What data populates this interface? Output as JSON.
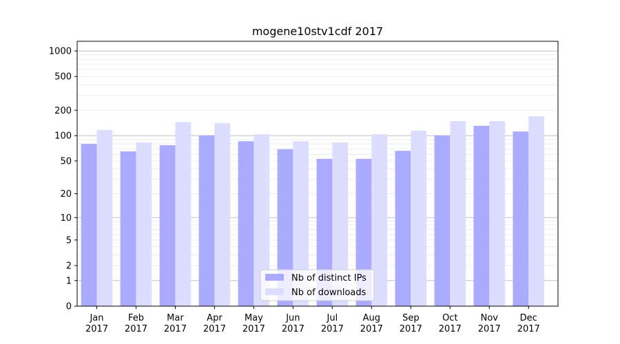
{
  "chart_data": {
    "type": "bar",
    "title": "mogene10stv1cdf 2017",
    "xlabel": "",
    "ylabel": "",
    "y_scale": "symlog",
    "ylim": [
      0,
      1300
    ],
    "y_ticks": [
      0,
      1,
      2,
      5,
      10,
      20,
      50,
      100,
      200,
      500,
      1000
    ],
    "y_tick_labels": [
      "0",
      "1",
      "2",
      "5",
      "10",
      "20",
      "50",
      "100",
      "200",
      "500",
      "1000"
    ],
    "categories": [
      "Jan\n2017",
      "Feb\n2017",
      "Mar\n2017",
      "Apr\n2017",
      "May\n2017",
      "Jun\n2017",
      "Jul\n2017",
      "Aug\n2017",
      "Sep\n2017",
      "Oct\n2017",
      "Nov\n2017",
      "Dec\n2017"
    ],
    "category_lines": [
      [
        "Jan",
        "2017"
      ],
      [
        "Feb",
        "2017"
      ],
      [
        "Mar",
        "2017"
      ],
      [
        "Apr",
        "2017"
      ],
      [
        "May",
        "2017"
      ],
      [
        "Jun",
        "2017"
      ],
      [
        "Jul",
        "2017"
      ],
      [
        "Aug",
        "2017"
      ],
      [
        "Sep",
        "2017"
      ],
      [
        "Oct",
        "2017"
      ],
      [
        "Nov",
        "2017"
      ],
      [
        "Dec",
        "2017"
      ]
    ],
    "series": [
      {
        "name": "Nb of distinct IPs",
        "color": "#aaaaff",
        "values": [
          80,
          65,
          77,
          101,
          86,
          69,
          53,
          53,
          66,
          101,
          131,
          112
        ]
      },
      {
        "name": "Nb of downloads",
        "color": "#ddddff",
        "values": [
          117,
          83,
          145,
          141,
          104,
          86,
          83,
          104,
          115,
          149,
          149,
          170
        ]
      }
    ],
    "legend_position": "lower-center",
    "grid": "horizontal"
  }
}
